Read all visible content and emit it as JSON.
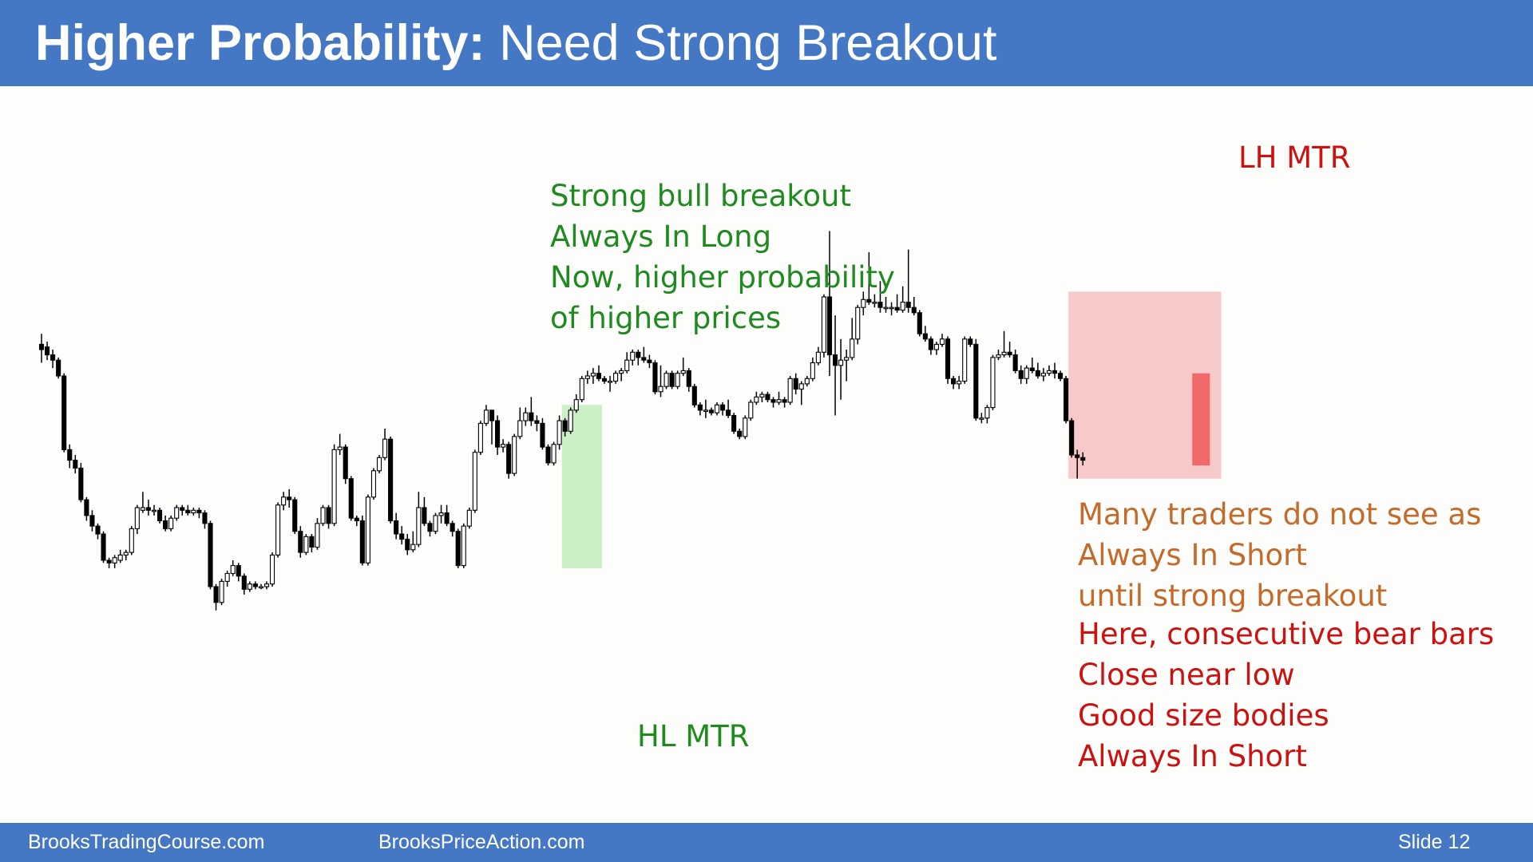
{
  "title": {
    "bold": "Higher Probability:",
    "rest": " Need Strong Breakout"
  },
  "footer": {
    "left": "BrooksTradingCourse.com",
    "center": "BrooksPriceAction.com",
    "slide": "Slide  12"
  },
  "annotations": {
    "bull_breakout": [
      "Strong bull breakout",
      "Always In Long",
      "Now, higher probability",
      "of higher prices"
    ],
    "lh_mtr": "LH MTR",
    "hl_mtr": "HL MTR",
    "traders_note": [
      "Many traders do not see as",
      "Always In Short",
      "until strong breakout"
    ],
    "bear_bars_note": [
      "Here, consecutive bear bars",
      "Close near low",
      "Good size bodies",
      "Always In Short"
    ]
  },
  "colors": {
    "header": "#4478c4",
    "green_text": "#1f8a1f",
    "red_text": "#cc1111",
    "orange_text": "#c46a2a",
    "green_zone": "#b6e8b0",
    "red_zone": "#f4a6a6",
    "red_zone_dark": "#ee4a4a",
    "bull_body": "#ffffff",
    "bear_body": "#000000"
  },
  "chart_data": {
    "type": "candlestick",
    "title": "",
    "xlabel": "",
    "ylabel": "",
    "ylim": [
      0,
      100
    ],
    "bars": [
      {
        "o": 71.0,
        "h": 73.0,
        "l": 67.5,
        "c": 70.0
      },
      {
        "o": 70.5,
        "h": 71.5,
        "l": 68.0,
        "c": 69.0
      },
      {
        "o": 69.0,
        "h": 70.0,
        "l": 66.5,
        "c": 68.0
      },
      {
        "o": 68.0,
        "h": 68.5,
        "l": 64.5,
        "c": 65.0
      },
      {
        "o": 65.0,
        "h": 65.5,
        "l": 50.5,
        "c": 51.0
      },
      {
        "o": 51.0,
        "h": 52.0,
        "l": 47.5,
        "c": 49.0
      },
      {
        "o": 49.0,
        "h": 50.0,
        "l": 46.5,
        "c": 47.5
      },
      {
        "o": 47.5,
        "h": 48.5,
        "l": 41.0,
        "c": 41.5
      },
      {
        "o": 41.5,
        "h": 42.0,
        "l": 37.5,
        "c": 38.5
      },
      {
        "o": 38.5,
        "h": 39.5,
        "l": 35.5,
        "c": 36.5
      },
      {
        "o": 36.5,
        "h": 37.0,
        "l": 34.0,
        "c": 35.0
      },
      {
        "o": 35.0,
        "h": 35.5,
        "l": 29.5,
        "c": 30.0
      },
      {
        "o": 30.0,
        "h": 30.5,
        "l": 28.5,
        "c": 29.5
      },
      {
        "o": 29.5,
        "h": 31.0,
        "l": 28.5,
        "c": 30.5
      },
      {
        "o": 30.0,
        "h": 32.0,
        "l": 29.5,
        "c": 31.0
      },
      {
        "o": 31.0,
        "h": 32.0,
        "l": 30.0,
        "c": 31.5
      },
      {
        "o": 31.5,
        "h": 36.5,
        "l": 31.0,
        "c": 36.0
      },
      {
        "o": 36.0,
        "h": 40.5,
        "l": 35.0,
        "c": 40.0
      },
      {
        "o": 39.5,
        "h": 43.0,
        "l": 39.0,
        "c": 40.0
      },
      {
        "o": 40.0,
        "h": 41.5,
        "l": 38.5,
        "c": 39.5
      },
      {
        "o": 39.5,
        "h": 40.5,
        "l": 38.5,
        "c": 39.5
      },
      {
        "o": 39.5,
        "h": 40.0,
        "l": 37.0,
        "c": 37.5
      },
      {
        "o": 37.5,
        "h": 38.5,
        "l": 35.5,
        "c": 36.0
      },
      {
        "o": 36.0,
        "h": 38.5,
        "l": 35.5,
        "c": 38.0
      },
      {
        "o": 38.0,
        "h": 40.5,
        "l": 37.5,
        "c": 40.0
      },
      {
        "o": 40.0,
        "h": 40.5,
        "l": 38.5,
        "c": 39.5
      },
      {
        "o": 39.5,
        "h": 40.5,
        "l": 38.5,
        "c": 39.0
      },
      {
        "o": 39.0,
        "h": 40.0,
        "l": 38.5,
        "c": 39.5
      },
      {
        "o": 39.5,
        "h": 40.0,
        "l": 38.0,
        "c": 39.0
      },
      {
        "o": 39.0,
        "h": 39.5,
        "l": 36.0,
        "c": 37.0
      },
      {
        "o": 37.0,
        "h": 37.5,
        "l": 24.5,
        "c": 25.0
      },
      {
        "o": 25.0,
        "h": 25.5,
        "l": 20.5,
        "c": 22.0
      },
      {
        "o": 22.0,
        "h": 26.5,
        "l": 21.5,
        "c": 26.0
      },
      {
        "o": 26.0,
        "h": 28.0,
        "l": 25.0,
        "c": 27.5
      },
      {
        "o": 27.5,
        "h": 30.0,
        "l": 27.0,
        "c": 29.0
      },
      {
        "o": 29.0,
        "h": 29.5,
        "l": 26.0,
        "c": 27.0
      },
      {
        "o": 27.0,
        "h": 27.5,
        "l": 23.5,
        "c": 24.5
      },
      {
        "o": 24.5,
        "h": 26.0,
        "l": 24.0,
        "c": 25.5
      },
      {
        "o": 25.5,
        "h": 26.0,
        "l": 24.5,
        "c": 25.0
      },
      {
        "o": 25.0,
        "h": 25.5,
        "l": 24.5,
        "c": 25.0
      },
      {
        "o": 25.0,
        "h": 26.0,
        "l": 24.5,
        "c": 25.5
      },
      {
        "o": 25.5,
        "h": 31.5,
        "l": 25.0,
        "c": 31.0
      },
      {
        "o": 31.0,
        "h": 41.0,
        "l": 30.5,
        "c": 40.5
      },
      {
        "o": 40.5,
        "h": 43.0,
        "l": 39.5,
        "c": 42.0
      },
      {
        "o": 42.0,
        "h": 43.5,
        "l": 40.0,
        "c": 41.5
      },
      {
        "o": 41.5,
        "h": 42.0,
        "l": 35.0,
        "c": 35.5
      },
      {
        "o": 35.5,
        "h": 36.5,
        "l": 30.5,
        "c": 31.5
      },
      {
        "o": 31.5,
        "h": 35.0,
        "l": 31.0,
        "c": 34.5
      },
      {
        "o": 34.5,
        "h": 35.0,
        "l": 31.5,
        "c": 32.5
      },
      {
        "o": 32.5,
        "h": 38.0,
        "l": 32.0,
        "c": 37.0
      },
      {
        "o": 37.0,
        "h": 40.5,
        "l": 36.5,
        "c": 40.0
      },
      {
        "o": 40.0,
        "h": 40.5,
        "l": 36.0,
        "c": 37.0
      },
      {
        "o": 37.0,
        "h": 52.0,
        "l": 36.5,
        "c": 51.0
      },
      {
        "o": 51.0,
        "h": 54.0,
        "l": 50.0,
        "c": 51.5
      },
      {
        "o": 51.5,
        "h": 52.0,
        "l": 44.5,
        "c": 45.5
      },
      {
        "o": 45.5,
        "h": 46.0,
        "l": 37.5,
        "c": 38.0
      },
      {
        "o": 38.0,
        "h": 38.5,
        "l": 36.5,
        "c": 37.5
      },
      {
        "o": 37.5,
        "h": 38.5,
        "l": 29.0,
        "c": 29.5
      },
      {
        "o": 29.5,
        "h": 42.5,
        "l": 29.0,
        "c": 42.0
      },
      {
        "o": 42.0,
        "h": 47.5,
        "l": 41.5,
        "c": 47.0
      },
      {
        "o": 47.0,
        "h": 50.0,
        "l": 46.5,
        "c": 49.5
      },
      {
        "o": 49.5,
        "h": 55.0,
        "l": 49.0,
        "c": 53.0
      },
      {
        "o": 53.0,
        "h": 53.5,
        "l": 37.0,
        "c": 37.5
      },
      {
        "o": 37.5,
        "h": 39.0,
        "l": 34.0,
        "c": 35.0
      },
      {
        "o": 35.0,
        "h": 36.5,
        "l": 33.0,
        "c": 34.0
      },
      {
        "o": 34.0,
        "h": 35.0,
        "l": 31.0,
        "c": 32.0
      },
      {
        "o": 32.0,
        "h": 35.5,
        "l": 31.5,
        "c": 33.0
      },
      {
        "o": 33.0,
        "h": 43.0,
        "l": 32.5,
        "c": 40.0
      },
      {
        "o": 40.0,
        "h": 42.0,
        "l": 36.5,
        "c": 37.0
      },
      {
        "o": 37.0,
        "h": 37.5,
        "l": 34.5,
        "c": 35.5
      },
      {
        "o": 35.5,
        "h": 39.0,
        "l": 35.0,
        "c": 38.5
      },
      {
        "o": 38.5,
        "h": 40.5,
        "l": 37.0,
        "c": 39.0
      },
      {
        "o": 39.0,
        "h": 40.5,
        "l": 36.5,
        "c": 37.0
      },
      {
        "o": 37.0,
        "h": 37.5,
        "l": 34.5,
        "c": 35.5
      },
      {
        "o": 35.5,
        "h": 36.0,
        "l": 28.5,
        "c": 29.0
      },
      {
        "o": 29.0,
        "h": 37.0,
        "l": 28.5,
        "c": 36.5
      },
      {
        "o": 36.5,
        "h": 40.0,
        "l": 36.0,
        "c": 39.5
      },
      {
        "o": 39.5,
        "h": 51.0,
        "l": 39.0,
        "c": 50.5
      },
      {
        "o": 50.5,
        "h": 56.5,
        "l": 50.0,
        "c": 56.0
      },
      {
        "o": 56.0,
        "h": 59.5,
        "l": 55.5,
        "c": 58.5
      },
      {
        "o": 58.5,
        "h": 58.5,
        "l": 52.0,
        "c": 56.5
      },
      {
        "o": 56.5,
        "h": 57.5,
        "l": 50.0,
        "c": 51.5
      },
      {
        "o": 51.5,
        "h": 53.0,
        "l": 50.5,
        "c": 52.0
      },
      {
        "o": 52.0,
        "h": 52.5,
        "l": 45.5,
        "c": 46.5
      },
      {
        "o": 46.5,
        "h": 54.0,
        "l": 46.0,
        "c": 53.5
      },
      {
        "o": 53.5,
        "h": 59.0,
        "l": 53.0,
        "c": 56.5
      },
      {
        "o": 56.5,
        "h": 59.0,
        "l": 55.5,
        "c": 58.0
      },
      {
        "o": 58.0,
        "h": 61.0,
        "l": 55.5,
        "c": 56.5
      },
      {
        "o": 56.5,
        "h": 57.5,
        "l": 54.5,
        "c": 56.0
      },
      {
        "o": 56.0,
        "h": 57.0,
        "l": 51.0,
        "c": 51.5
      },
      {
        "o": 51.5,
        "h": 52.0,
        "l": 48.0,
        "c": 48.5
      },
      {
        "o": 48.5,
        "h": 52.5,
        "l": 48.0,
        "c": 52.0
      },
      {
        "o": 52.0,
        "h": 57.5,
        "l": 51.0,
        "c": 56.5
      },
      {
        "o": 56.5,
        "h": 57.0,
        "l": 53.5,
        "c": 54.5
      },
      {
        "o": 54.5,
        "h": 59.0,
        "l": 54.0,
        "c": 58.5
      },
      {
        "o": 58.5,
        "h": 61.5,
        "l": 58.0,
        "c": 60.5
      },
      {
        "o": 60.5,
        "h": 65.0,
        "l": 60.0,
        "c": 64.5
      },
      {
        "o": 64.5,
        "h": 66.0,
        "l": 63.5,
        "c": 65.0
      },
      {
        "o": 65.0,
        "h": 66.5,
        "l": 63.5,
        "c": 65.5
      },
      {
        "o": 65.5,
        "h": 67.0,
        "l": 64.0,
        "c": 64.5
      },
      {
        "o": 64.5,
        "h": 65.0,
        "l": 63.5,
        "c": 64.0
      },
      {
        "o": 64.0,
        "h": 65.0,
        "l": 62.0,
        "c": 64.0
      },
      {
        "o": 64.0,
        "h": 66.0,
        "l": 63.5,
        "c": 65.5
      },
      {
        "o": 65.5,
        "h": 66.5,
        "l": 64.0,
        "c": 66.0
      },
      {
        "o": 66.0,
        "h": 69.5,
        "l": 65.5,
        "c": 68.0
      },
      {
        "o": 68.0,
        "h": 70.0,
        "l": 67.0,
        "c": 69.5
      },
      {
        "o": 69.5,
        "h": 70.0,
        "l": 67.0,
        "c": 68.5
      },
      {
        "o": 68.5,
        "h": 70.5,
        "l": 67.5,
        "c": 68.0
      },
      {
        "o": 68.0,
        "h": 69.0,
        "l": 66.5,
        "c": 67.5
      },
      {
        "o": 67.5,
        "h": 68.0,
        "l": 61.5,
        "c": 62.0
      },
      {
        "o": 62.0,
        "h": 67.0,
        "l": 61.0,
        "c": 63.0
      },
      {
        "o": 63.0,
        "h": 66.0,
        "l": 62.5,
        "c": 65.5
      },
      {
        "o": 65.5,
        "h": 66.0,
        "l": 62.5,
        "c": 63.0
      },
      {
        "o": 63.0,
        "h": 66.0,
        "l": 62.5,
        "c": 65.5
      },
      {
        "o": 65.5,
        "h": 68.5,
        "l": 65.0,
        "c": 66.0
      },
      {
        "o": 66.0,
        "h": 66.5,
        "l": 62.0,
        "c": 63.0
      },
      {
        "o": 63.0,
        "h": 63.5,
        "l": 59.0,
        "c": 59.5
      },
      {
        "o": 59.5,
        "h": 60.0,
        "l": 57.5,
        "c": 58.5
      },
      {
        "o": 58.5,
        "h": 60.5,
        "l": 57.0,
        "c": 58.5
      },
      {
        "o": 58.5,
        "h": 59.0,
        "l": 57.5,
        "c": 58.0
      },
      {
        "o": 58.0,
        "h": 60.0,
        "l": 57.5,
        "c": 59.5
      },
      {
        "o": 59.5,
        "h": 60.0,
        "l": 57.5,
        "c": 58.5
      },
      {
        "o": 58.5,
        "h": 60.5,
        "l": 57.0,
        "c": 57.5
      },
      {
        "o": 57.5,
        "h": 58.0,
        "l": 54.0,
        "c": 54.5
      },
      {
        "o": 54.5,
        "h": 55.0,
        "l": 53.0,
        "c": 53.5
      },
      {
        "o": 53.5,
        "h": 57.5,
        "l": 53.0,
        "c": 57.0
      },
      {
        "o": 57.0,
        "h": 60.5,
        "l": 56.5,
        "c": 60.0
      },
      {
        "o": 60.0,
        "h": 62.0,
        "l": 59.5,
        "c": 61.0
      },
      {
        "o": 61.0,
        "h": 62.0,
        "l": 60.0,
        "c": 61.5
      },
      {
        "o": 61.5,
        "h": 62.0,
        "l": 60.0,
        "c": 60.5
      },
      {
        "o": 60.5,
        "h": 61.0,
        "l": 59.0,
        "c": 60.0
      },
      {
        "o": 60.0,
        "h": 62.0,
        "l": 59.5,
        "c": 60.5
      },
      {
        "o": 60.5,
        "h": 61.0,
        "l": 59.0,
        "c": 60.0
      },
      {
        "o": 60.0,
        "h": 65.0,
        "l": 59.5,
        "c": 64.5
      },
      {
        "o": 64.5,
        "h": 65.5,
        "l": 61.5,
        "c": 62.5
      },
      {
        "o": 62.5,
        "h": 64.0,
        "l": 59.5,
        "c": 63.5
      },
      {
        "o": 63.5,
        "h": 65.0,
        "l": 63.0,
        "c": 64.5
      },
      {
        "o": 64.5,
        "h": 68.5,
        "l": 64.0,
        "c": 67.5
      },
      {
        "o": 67.5,
        "h": 70.5,
        "l": 67.0,
        "c": 69.5
      },
      {
        "o": 69.5,
        "h": 80.5,
        "l": 68.5,
        "c": 80.0
      },
      {
        "o": 80.0,
        "h": 92.5,
        "l": 65.0,
        "c": 69.0
      },
      {
        "o": 69.0,
        "h": 76.5,
        "l": 57.5,
        "c": 67.0
      },
      {
        "o": 67.0,
        "h": 72.0,
        "l": 60.5,
        "c": 68.0
      },
      {
        "o": 68.0,
        "h": 70.0,
        "l": 64.0,
        "c": 68.5
      },
      {
        "o": 68.5,
        "h": 76.0,
        "l": 68.0,
        "c": 72.0
      },
      {
        "o": 72.0,
        "h": 78.5,
        "l": 71.0,
        "c": 78.0
      },
      {
        "o": 78.0,
        "h": 81.0,
        "l": 76.5,
        "c": 79.5
      },
      {
        "o": 79.5,
        "h": 88.5,
        "l": 78.5,
        "c": 79.0
      },
      {
        "o": 79.0,
        "h": 80.5,
        "l": 78.0,
        "c": 79.0
      },
      {
        "o": 79.0,
        "h": 83.0,
        "l": 77.0,
        "c": 78.0
      },
      {
        "o": 78.0,
        "h": 80.0,
        "l": 77.0,
        "c": 78.0
      },
      {
        "o": 78.0,
        "h": 79.0,
        "l": 76.5,
        "c": 78.0
      },
      {
        "o": 78.0,
        "h": 80.5,
        "l": 77.0,
        "c": 77.5
      },
      {
        "o": 77.5,
        "h": 82.0,
        "l": 77.0,
        "c": 79.0
      },
      {
        "o": 79.0,
        "h": 89.0,
        "l": 77.0,
        "c": 78.0
      },
      {
        "o": 78.0,
        "h": 80.0,
        "l": 76.5,
        "c": 77.0
      },
      {
        "o": 77.0,
        "h": 77.5,
        "l": 72.5,
        "c": 73.0
      },
      {
        "o": 73.0,
        "h": 74.5,
        "l": 71.5,
        "c": 72.0
      },
      {
        "o": 72.0,
        "h": 72.5,
        "l": 69.0,
        "c": 70.0
      },
      {
        "o": 70.0,
        "h": 71.5,
        "l": 69.0,
        "c": 71.0
      },
      {
        "o": 71.0,
        "h": 73.0,
        "l": 70.5,
        "c": 72.0
      },
      {
        "o": 72.0,
        "h": 72.5,
        "l": 63.5,
        "c": 64.5
      },
      {
        "o": 64.5,
        "h": 65.0,
        "l": 62.5,
        "c": 63.5
      },
      {
        "o": 63.5,
        "h": 65.0,
        "l": 62.5,
        "c": 64.0
      },
      {
        "o": 64.0,
        "h": 72.5,
        "l": 63.5,
        "c": 72.0
      },
      {
        "o": 72.0,
        "h": 72.5,
        "l": 70.5,
        "c": 71.0
      },
      {
        "o": 71.0,
        "h": 72.0,
        "l": 56.5,
        "c": 57.0
      },
      {
        "o": 57.0,
        "h": 58.0,
        "l": 56.0,
        "c": 57.0
      },
      {
        "o": 57.0,
        "h": 59.5,
        "l": 56.0,
        "c": 59.0
      },
      {
        "o": 59.0,
        "h": 69.0,
        "l": 58.5,
        "c": 68.5
      },
      {
        "o": 68.5,
        "h": 70.0,
        "l": 68.0,
        "c": 69.0
      },
      {
        "o": 69.0,
        "h": 73.5,
        "l": 68.5,
        "c": 69.5
      },
      {
        "o": 69.5,
        "h": 71.5,
        "l": 68.5,
        "c": 69.0
      },
      {
        "o": 69.0,
        "h": 70.0,
        "l": 65.5,
        "c": 66.0
      },
      {
        "o": 66.0,
        "h": 67.0,
        "l": 63.5,
        "c": 64.5
      },
      {
        "o": 64.5,
        "h": 67.0,
        "l": 63.5,
        "c": 66.5
      },
      {
        "o": 66.5,
        "h": 68.5,
        "l": 65.5,
        "c": 66.0
      },
      {
        "o": 66.0,
        "h": 67.5,
        "l": 64.5,
        "c": 65.0
      },
      {
        "o": 65.0,
        "h": 66.5,
        "l": 64.0,
        "c": 65.5
      },
      {
        "o": 65.5,
        "h": 67.0,
        "l": 65.0,
        "c": 66.0
      },
      {
        "o": 66.0,
        "h": 67.5,
        "l": 64.5,
        "c": 65.5
      },
      {
        "o": 65.5,
        "h": 66.0,
        "l": 64.0,
        "c": 64.5
      },
      {
        "o": 64.5,
        "h": 65.0,
        "l": 56.0,
        "c": 56.5
      },
      {
        "o": 56.5,
        "h": 57.0,
        "l": 49.5,
        "c": 50.0
      },
      {
        "o": 50.0,
        "h": 51.0,
        "l": 45.5,
        "c": 49.5
      },
      {
        "o": 49.5,
        "h": 50.5,
        "l": 48.0,
        "c": 49.0
      }
    ]
  }
}
